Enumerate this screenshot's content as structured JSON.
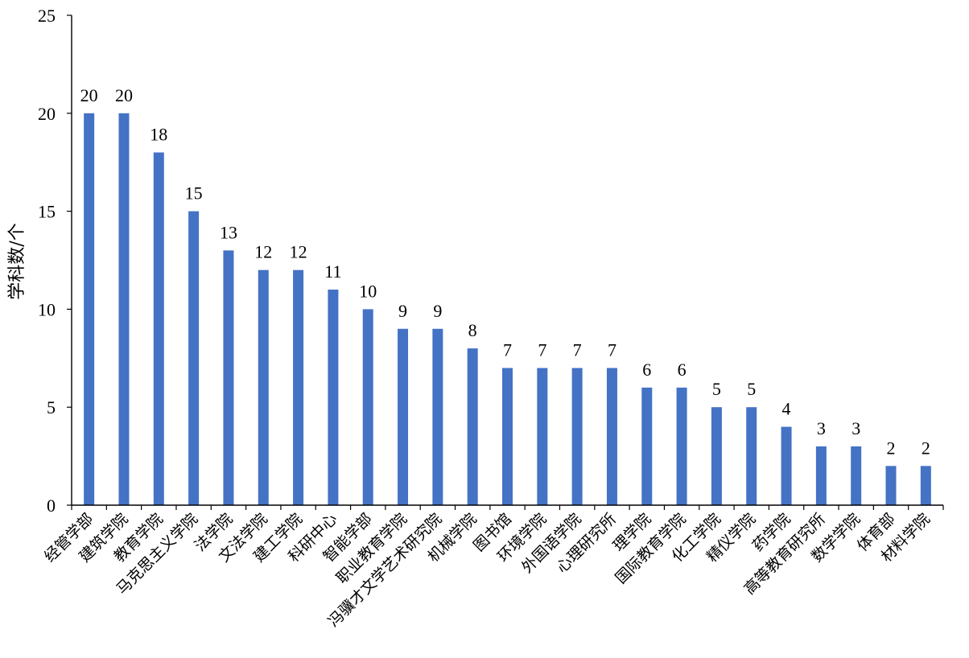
{
  "chart_data": {
    "type": "bar",
    "title": "",
    "xlabel": "",
    "ylabel": "学科数/个",
    "ylim": [
      0,
      25
    ],
    "yticks": [
      0,
      5,
      10,
      15,
      20,
      25
    ],
    "grid": false,
    "legend": "none",
    "bar_color": "#4472c4",
    "categories": [
      "经管学部",
      "建筑学院",
      "教育学院",
      "马克思主义学院",
      "法学院",
      "文法学院",
      "建工学院",
      "科研中心",
      "智能学部",
      "职业教育学院",
      "冯骥才文学艺术研究院",
      "机械学院",
      "图书馆",
      "环境学院",
      "外国语学院",
      "心理研究所",
      "理学院",
      "国际教育学院",
      "化工学院",
      "精仪学院",
      "药学院",
      "高等教育研究所",
      "数学学院",
      "体育部",
      "材料学院"
    ],
    "values": [
      20,
      20,
      18,
      15,
      13,
      12,
      12,
      11,
      10,
      9,
      9,
      8,
      7,
      7,
      7,
      7,
      6,
      6,
      5,
      5,
      4,
      3,
      3,
      2,
      2
    ]
  }
}
